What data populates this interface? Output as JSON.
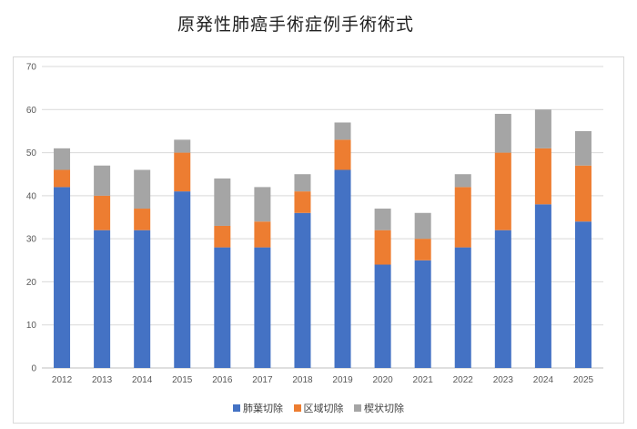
{
  "title": "原発性肺癌手術症例手術術式",
  "chart_data": {
    "type": "bar",
    "stacked": true,
    "categories": [
      "2012",
      "2013",
      "2014",
      "2015",
      "2016",
      "2017",
      "2018",
      "2019",
      "2020",
      "2021",
      "2022",
      "2023",
      "2024",
      "2025"
    ],
    "series": [
      {
        "name": "肺葉切除",
        "color": "#4472c4",
        "values": [
          42,
          32,
          32,
          41,
          28,
          28,
          36,
          46,
          24,
          25,
          28,
          32,
          38,
          34
        ]
      },
      {
        "name": "区域切除",
        "color": "#ed7d31",
        "values": [
          4,
          8,
          5,
          9,
          5,
          6,
          5,
          7,
          8,
          5,
          14,
          18,
          13,
          13
        ]
      },
      {
        "name": "楔状切除",
        "color": "#a5a5a5",
        "values": [
          5,
          7,
          9,
          3,
          11,
          8,
          4,
          4,
          5,
          6,
          3,
          9,
          9,
          8
        ]
      }
    ],
    "ylim": [
      0,
      70
    ],
    "yticks": [
      0,
      10,
      20,
      30,
      40,
      50,
      60,
      70
    ],
    "grid": true,
    "legend_position": "bottom"
  }
}
